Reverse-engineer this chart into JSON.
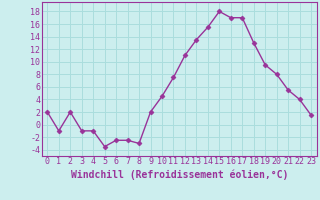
{
  "x": [
    0,
    1,
    2,
    3,
    4,
    5,
    6,
    7,
    8,
    9,
    10,
    11,
    12,
    13,
    14,
    15,
    16,
    17,
    18,
    19,
    20,
    21,
    22,
    23
  ],
  "y": [
    2,
    -1,
    2,
    -1,
    -1,
    -3.5,
    -2.5,
    -2.5,
    -3,
    2,
    4.5,
    7.5,
    11,
    13.5,
    15.5,
    18,
    17,
    17,
    13,
    9.5,
    8,
    5.5,
    4,
    1.5
  ],
  "line_color": "#993399",
  "marker": "D",
  "marker_size": 2.5,
  "bg_color": "#cceeee",
  "grid_color": "#aadddd",
  "xlabel": "Windchill (Refroidissement éolien,°C)",
  "xlabel_fontsize": 7,
  "tick_fontsize": 6,
  "ylim": [
    -5,
    19.5
  ],
  "yticks": [
    -4,
    -2,
    0,
    2,
    4,
    6,
    8,
    10,
    12,
    14,
    16,
    18
  ],
  "xticks": [
    0,
    1,
    2,
    3,
    4,
    5,
    6,
    7,
    8,
    9,
    10,
    11,
    12,
    13,
    14,
    15,
    16,
    17,
    18,
    19,
    20,
    21,
    22,
    23
  ],
  "line_width": 1.0
}
